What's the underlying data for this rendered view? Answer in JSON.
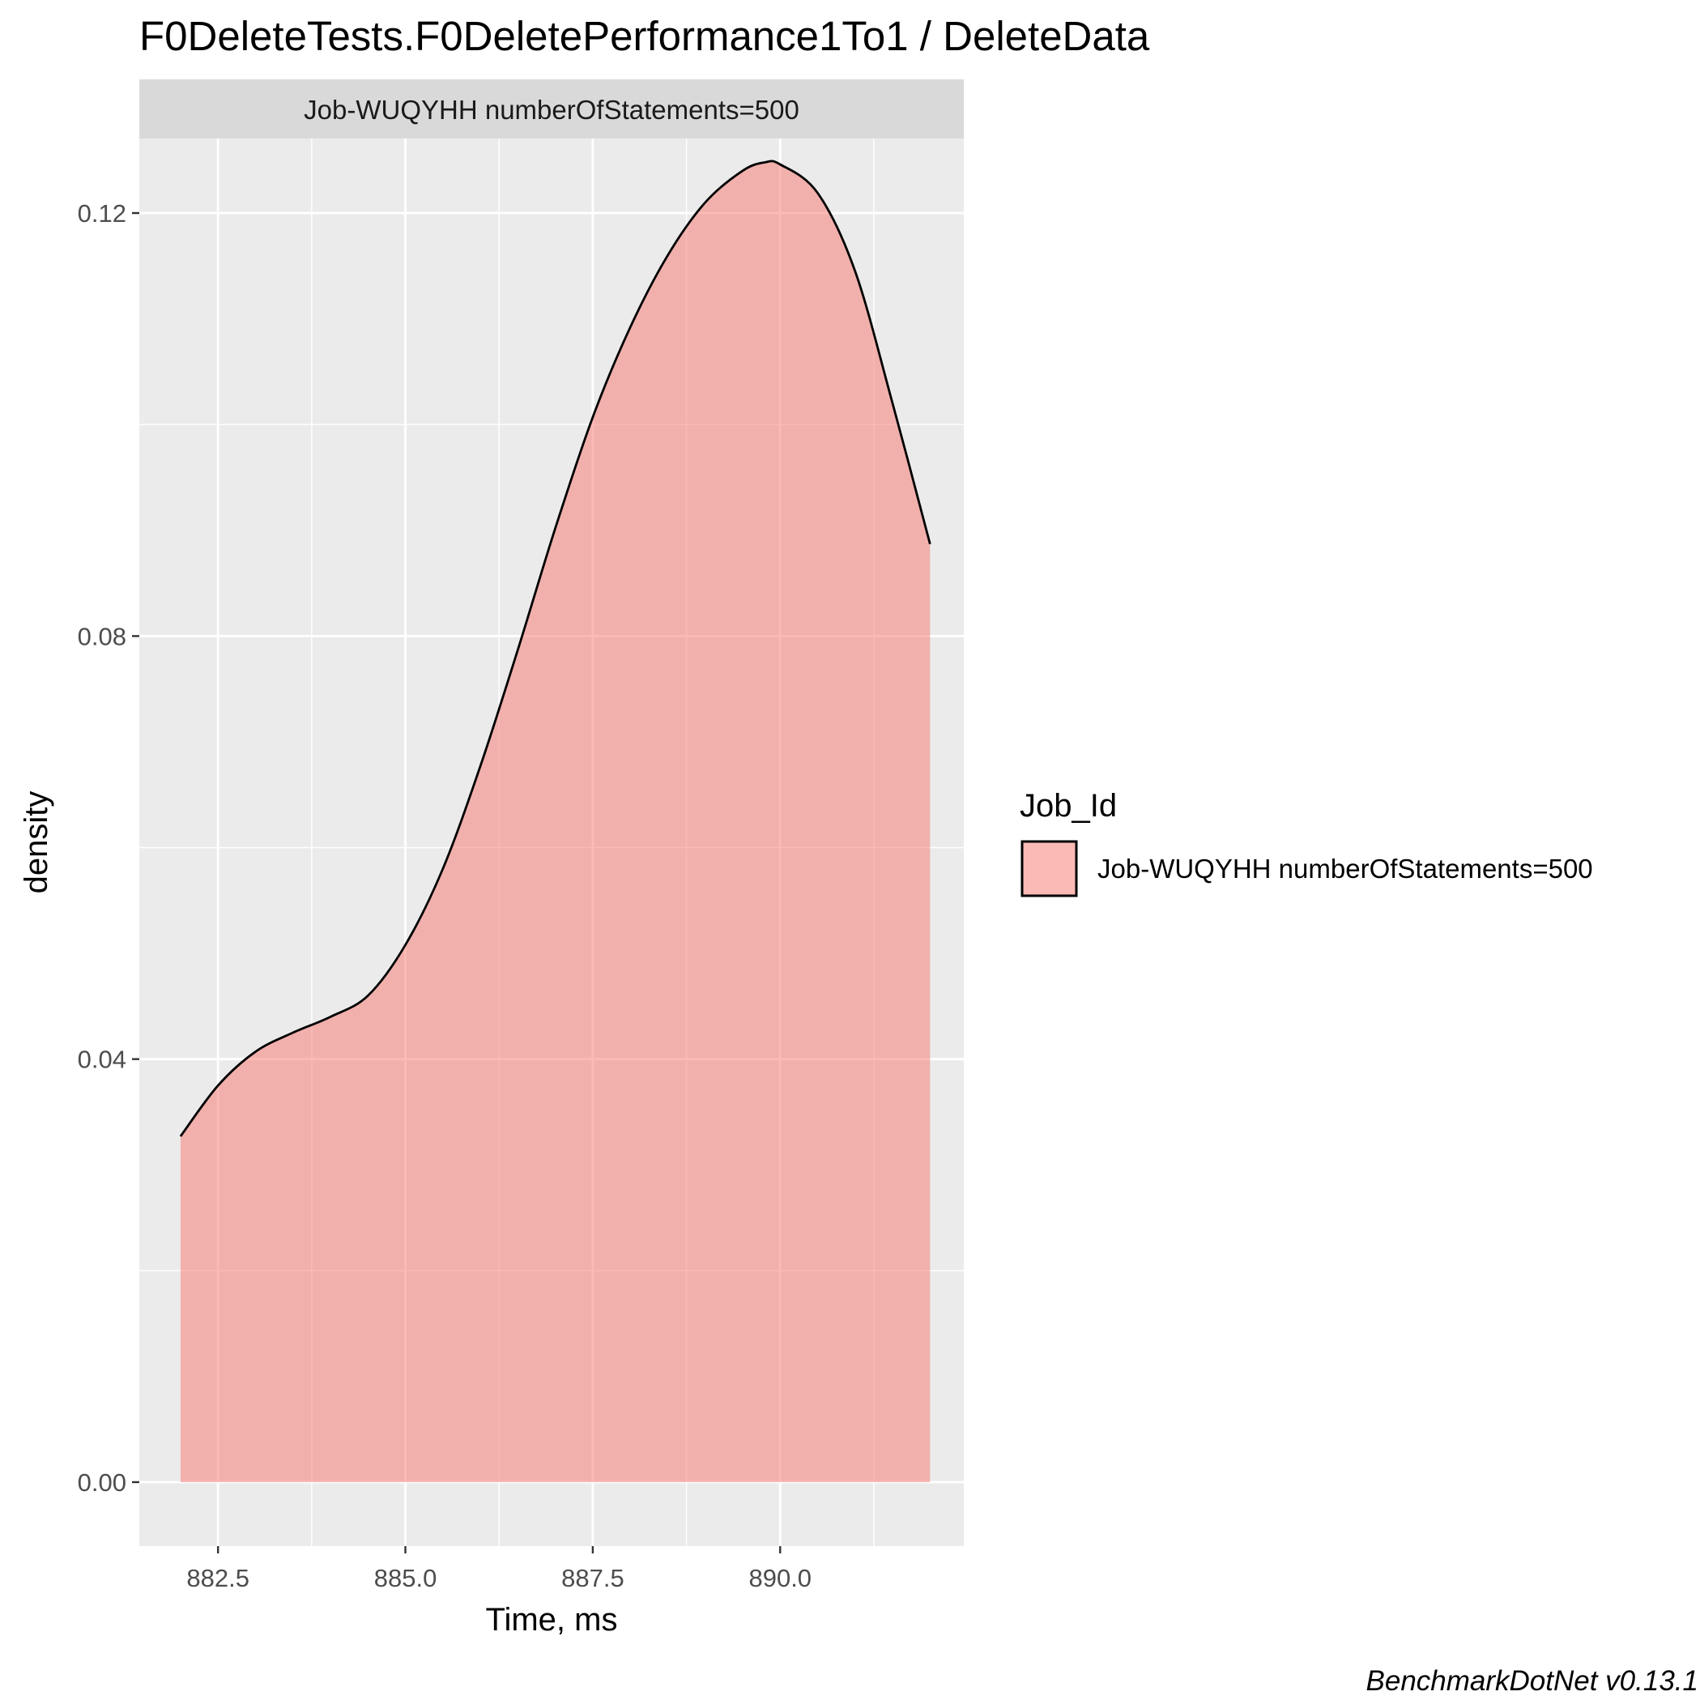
{
  "title": "F0DeleteTests.F0DeletePerformance1To1 / DeleteData",
  "caption": "BenchmarkDotNet v0.13.1",
  "colors": {
    "panel_background": "#ebebeb",
    "strip_background": "#d9d9d9",
    "grid": "#ffffff",
    "fill": "#f8766d",
    "outline": "#000000"
  },
  "chart_data": {
    "type": "area",
    "facet_label": "Job-WUQYHH numberOfStatements=500",
    "xlabel": "Time, ms",
    "ylabel": "density",
    "xlim": [
      881.45,
      892.45
    ],
    "ylim": [
      -0.00605,
      0.12705
    ],
    "x_ticks": [
      882.5,
      885.0,
      887.5,
      890.0
    ],
    "x_tick_labels": [
      "882.5",
      "885.0",
      "887.5",
      "890.0"
    ],
    "y_ticks": [
      0.0,
      0.04,
      0.08,
      0.12
    ],
    "y_tick_labels": [
      "0.00",
      "0.04",
      "0.08",
      "0.12"
    ],
    "grid": true,
    "legend": {
      "title": "Job_Id",
      "position": "right",
      "entries": [
        "Job-WUQYHH numberOfStatements=500"
      ]
    },
    "series": [
      {
        "name": "Job-WUQYHH numberOfStatements=500",
        "fill_opacity": 0.5,
        "x": [
          882.0,
          882.5,
          883.0,
          883.5,
          884.0,
          884.5,
          885.0,
          885.5,
          886.0,
          886.5,
          887.0,
          887.5,
          888.0,
          888.5,
          889.0,
          889.5,
          889.8,
          890.0,
          890.5,
          891.0,
          891.5,
          892.0
        ],
        "y": [
          0.0327,
          0.0375,
          0.0407,
          0.0425,
          0.044,
          0.046,
          0.0508,
          0.058,
          0.0677,
          0.0787,
          0.0902,
          0.1007,
          0.1092,
          0.116,
          0.121,
          0.124,
          0.1248,
          0.1246,
          0.1219,
          0.1145,
          0.102,
          0.0887
        ]
      }
    ]
  }
}
